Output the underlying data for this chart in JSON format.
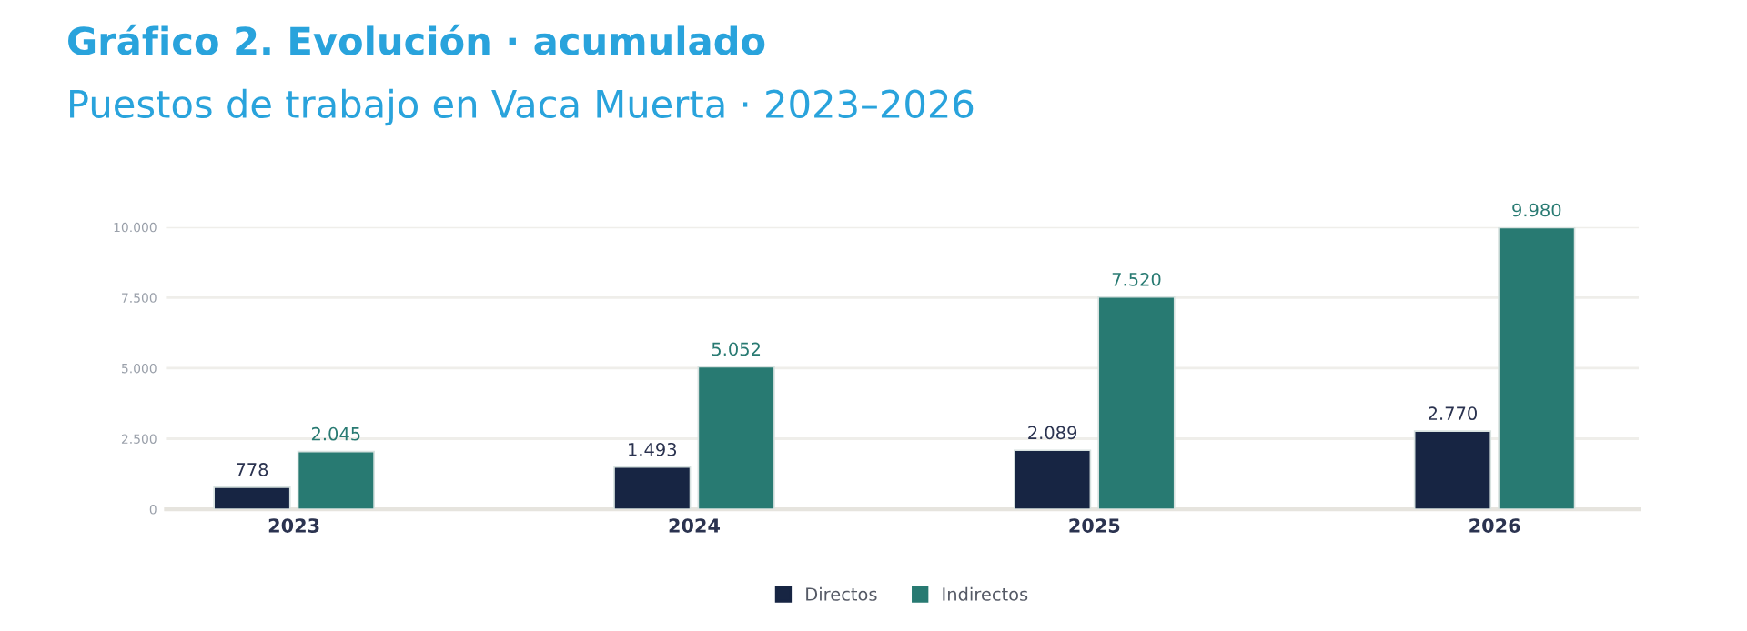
{
  "chart_data": {
    "type": "bar",
    "title": "Gráfico 2. Evolución · acumulado",
    "subtitle": "Puestos de trabajo en Vaca Muerta · 2023–2026",
    "categories": [
      "2023",
      "2024",
      "2025",
      "2026"
    ],
    "series": [
      {
        "name": "Directos",
        "color": "#172543",
        "values": [
          778,
          1493,
          2089,
          2770
        ],
        "value_labels": [
          "778",
          "1.493",
          "2.089",
          "2.770"
        ]
      },
      {
        "name": "Indirectos",
        "color": "#287a72",
        "values": [
          2045,
          5052,
          7520,
          9980
        ],
        "value_labels": [
          "2.045",
          "5.052",
          "7.520",
          "9.980"
        ]
      }
    ],
    "ylim": [
      0,
      10000
    ],
    "yticks": [
      {
        "value": 0,
        "label": "0"
      },
      {
        "value": 2500,
        "label": "2.500"
      },
      {
        "value": 5000,
        "label": "5.000"
      },
      {
        "value": 7500,
        "label": "7.500"
      },
      {
        "value": 10000,
        "label": "10.000"
      }
    ],
    "grid": "y",
    "legend": "bottom"
  }
}
